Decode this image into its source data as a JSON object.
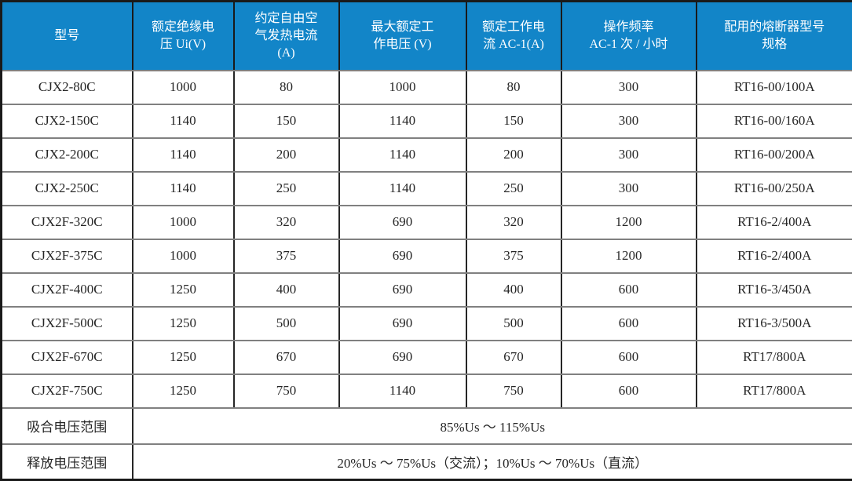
{
  "colors": {
    "header_bg": "#1285C8",
    "header_text": "#FFFFFF",
    "body_text": "#262626",
    "grid_horizontal": "#808080",
    "grid_vertical": "#262626",
    "outer_border": "#1A1A1A",
    "row_bg": "#FFFFFF"
  },
  "table": {
    "header_ids": [
      "model",
      "rated-insulation-voltage",
      "conventional-free-air-thermal-current",
      "max-rated-working-voltage",
      "rated-working-current-ac1",
      "operating-frequency-ac1",
      "matching-fuse-spec"
    ],
    "headers": [
      "型号",
      "额定绝缘电\n压 Ui(V)",
      "约定自由空\n气发热电流\n(A)",
      "最大额定工\n作电压 (V)",
      "额定工作电\n流 AC-1(A)",
      "操作频率\nAC-1 次 / 小时",
      "配用的熔断器型号\n规格"
    ],
    "rows": [
      [
        "CJX2-80C",
        "1000",
        "80",
        "1000",
        "80",
        "300",
        "RT16-00/100A"
      ],
      [
        "CJX2-150C",
        "1140",
        "150",
        "1140",
        "150",
        "300",
        "RT16-00/160A"
      ],
      [
        "CJX2-200C",
        "1140",
        "200",
        "1140",
        "200",
        "300",
        "RT16-00/200A"
      ],
      [
        "CJX2-250C",
        "1140",
        "250",
        "1140",
        "250",
        "300",
        "RT16-00/250A"
      ],
      [
        "CJX2F-320C",
        "1000",
        "320",
        "690",
        "320",
        "1200",
        "RT16-2/400A"
      ],
      [
        "CJX2F-375C",
        "1000",
        "375",
        "690",
        "375",
        "1200",
        "RT16-2/400A"
      ],
      [
        "CJX2F-400C",
        "1250",
        "400",
        "690",
        "400",
        "600",
        "RT16-3/450A"
      ],
      [
        "CJX2F-500C",
        "1250",
        "500",
        "690",
        "500",
        "600",
        "RT16-3/500A"
      ],
      [
        "CJX2F-670C",
        "1250",
        "670",
        "690",
        "670",
        "600",
        "RT17/800A"
      ],
      [
        "CJX2F-750C",
        "1250",
        "750",
        "1140",
        "750",
        "600",
        "RT17/800A"
      ]
    ],
    "footer_rows": [
      {
        "id": "pickup-voltage-range",
        "label": "吸合电压范围",
        "value": "85%Us ～ 115%Us"
      },
      {
        "id": "release-voltage-range",
        "label": "释放电压范围",
        "value": "20%Us ～ 75%Us（交流）；10%Us ～ 70%Us（直流）"
      }
    ]
  }
}
